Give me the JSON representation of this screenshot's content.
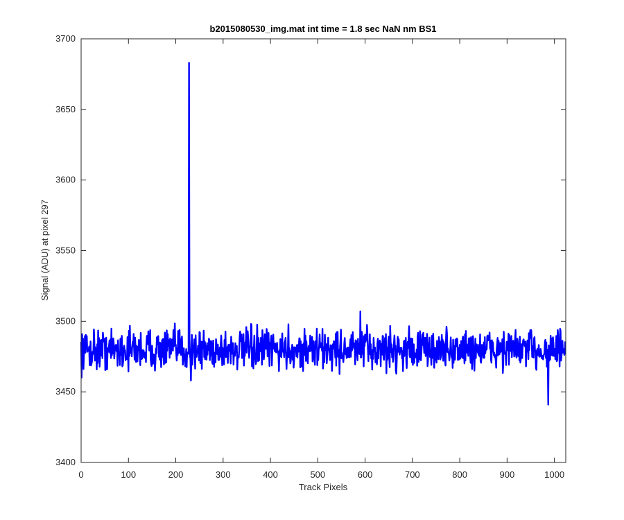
{
  "chart_data": {
    "type": "line",
    "title": "b2015080530_img.mat int time = 1.8 sec  NaN nm BS1",
    "xlabel": "Track Pixels",
    "ylabel": "Signal (ADU) at pixel 297",
    "xlim": [
      0,
      1024
    ],
    "ylim": [
      3400,
      3700
    ],
    "xticks": [
      0,
      100,
      200,
      300,
      400,
      500,
      600,
      700,
      800,
      900,
      1000
    ],
    "yticks": [
      3400,
      3450,
      3500,
      3550,
      3600,
      3650,
      3700
    ],
    "grid": false,
    "legend": "none",
    "series": [
      {
        "color": "#0000ff",
        "n_points": 1024,
        "baseline": 3480,
        "noise_range": [
          3455,
          3505
        ],
        "features": [
          {
            "x": 228,
            "y": 3683
          },
          {
            "x": 232,
            "y": 3458
          },
          {
            "x": 590,
            "y": 3507
          },
          {
            "x": 987,
            "y": 3441
          }
        ]
      }
    ]
  },
  "colors": {
    "axes": "#262626",
    "series": "#0000ff",
    "title": "#000000"
  }
}
